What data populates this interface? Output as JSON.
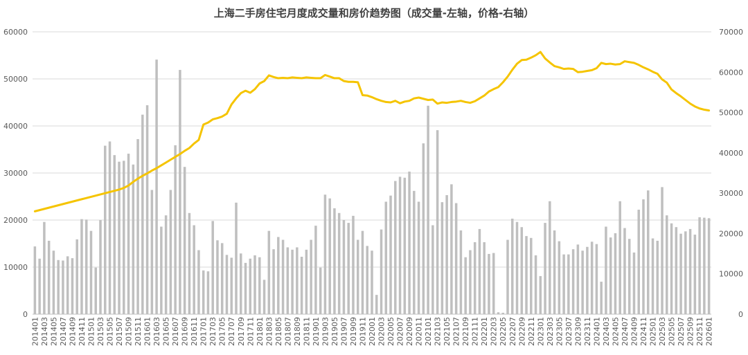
{
  "chart_data": {
    "type": "bar",
    "title": "上海二手房住宅月度成交量和房价趋势图（成交量-左轴，价格-右轴）",
    "left_axis": {
      "min": 0,
      "max": 60000,
      "ticks": [
        "0",
        "10000",
        "20000",
        "30000",
        "40000",
        "50000",
        "60000"
      ]
    },
    "right_axis": {
      "min": 0,
      "max": 70000,
      "ticks": [
        "0",
        "10000",
        "20000",
        "30000",
        "40000",
        "50000",
        "60000",
        "70000"
      ]
    },
    "grid": true,
    "colors": {
      "bar": "#bfbfbf",
      "line": "#f5c400",
      "grid": "#d9d9d9",
      "text": "#595959",
      "title": "#404040"
    },
    "x_tick_labels": [
      "201401",
      "201403",
      "201405",
      "201407",
      "201409",
      "201411",
      "201501",
      "201503",
      "201505",
      "201507",
      "201509",
      "201511",
      "201601",
      "201603",
      "201605",
      "201607",
      "201609",
      "201611",
      "201701",
      "201703",
      "201705",
      "201707",
      "201709",
      "201711",
      "201801",
      "201803",
      "201805",
      "201807",
      "201809",
      "201811",
      "201901",
      "201903",
      "201905",
      "201907",
      "201909",
      "201911",
      "202001",
      "202003",
      "202005",
      "202007",
      "202009",
      "202011",
      "202101",
      "202103",
      "202105",
      "202107",
      "202109",
      "202111",
      "202201",
      "202203",
      "202205",
      "202207",
      "202209",
      "202211",
      "202301",
      "202303",
      "202305",
      "202307",
      "202309",
      "202311",
      "202401",
      "202403",
      "202405",
      "202407",
      "202409",
      "202411",
      "202501",
      "202503",
      "202505",
      "202507",
      "202509",
      "202511",
      "202601"
    ],
    "categories": [
      "201401",
      "201402",
      "201403",
      "201404",
      "201405",
      "201406",
      "201407",
      "201408",
      "201409",
      "201410",
      "201411",
      "201412",
      "201501",
      "201502",
      "201503",
      "201504",
      "201505",
      "201506",
      "201507",
      "201508",
      "201509",
      "201510",
      "201511",
      "201512",
      "201601",
      "201602",
      "201603",
      "201604",
      "201605",
      "201606",
      "201607",
      "201608",
      "201609",
      "201610",
      "201611",
      "201612",
      "201701",
      "201702",
      "201703",
      "201704",
      "201705",
      "201706",
      "201707",
      "201708",
      "201709",
      "201710",
      "201711",
      "201712",
      "201801",
      "201802",
      "201803",
      "201804",
      "201805",
      "201806",
      "201807",
      "201808",
      "201809",
      "201810",
      "201811",
      "201812",
      "201901",
      "201902",
      "201903",
      "201904",
      "201905",
      "201906",
      "201907",
      "201908",
      "201909",
      "201910",
      "201911",
      "201912",
      "202001",
      "202002",
      "202003",
      "202004",
      "202005",
      "202006",
      "202007",
      "202008",
      "202009",
      "202010",
      "202011",
      "202012",
      "202101",
      "202102",
      "202103",
      "202104",
      "202105",
      "202106",
      "202107",
      "202108",
      "202109",
      "202110",
      "202111",
      "202112",
      "202201",
      "202202",
      "202203",
      "202204",
      "202205",
      "202206",
      "202207",
      "202208",
      "202209",
      "202210",
      "202211",
      "202212",
      "202301",
      "202302",
      "202303",
      "202304",
      "202305",
      "202306",
      "202307",
      "202308",
      "202309",
      "202310",
      "202311",
      "202312",
      "202401",
      "202402",
      "202403",
      "202404",
      "202405",
      "202406",
      "202407",
      "202408",
      "202409",
      "202410",
      "202411",
      "202412",
      "202501",
      "202502",
      "202503",
      "202504",
      "202505",
      "202506",
      "202507",
      "202508",
      "202509",
      "202510",
      "202511",
      "202512",
      "202601"
    ],
    "volume": [
      14400,
      11800,
      19600,
      15600,
      13500,
      11500,
      11400,
      12300,
      11900,
      15900,
      20200,
      20100,
      17700,
      9900,
      20000,
      35800,
      36700,
      33800,
      32400,
      32600,
      34100,
      31800,
      37200,
      42400,
      44400,
      26400,
      54100,
      18600,
      21000,
      26400,
      35900,
      51900,
      31300,
      21500,
      18900,
      13600,
      9300,
      9100,
      19800,
      15700,
      15100,
      12600,
      12000,
      23700,
      12900,
      10900,
      11800,
      12500,
      12100,
      7300,
      17700,
      13800,
      16400,
      15800,
      14200,
      13700,
      14200,
      12200,
      13700,
      15800,
      18800,
      9900,
      25400,
      24600,
      22500,
      21500,
      20000,
      19400,
      20900,
      15800,
      17700,
      14500,
      13500,
      4100,
      18000,
      23900,
      25200,
      28300,
      29200,
      29000,
      30300,
      26200,
      23900,
      36300,
      44300,
      18900,
      39100,
      23800,
      25300,
      27600,
      23600,
      17800,
      12100,
      13600,
      15300,
      18100,
      15300,
      12800,
      13000,
      400,
      300,
      15800,
      20300,
      19600,
      18500,
      16600,
      16200,
      12500,
      8100,
      19400,
      24000,
      17800,
      15500,
      12700,
      12700,
      13800,
      14800,
      13500,
      14300,
      15400,
      14900,
      6900,
      18600,
      16300,
      17200,
      24000,
      18300,
      16000,
      13100,
      22200,
      24400,
      26300,
      16100,
      15600,
      27000,
      21000,
      19300,
      18500,
      17100,
      17600,
      18100,
      16900,
      20600,
      20500,
      20400
    ],
    "price": [
      25500,
      25800,
      26100,
      26400,
      26700,
      27000,
      27300,
      27600,
      27900,
      28200,
      28500,
      28800,
      29100,
      29400,
      29700,
      30000,
      30300,
      30600,
      30900,
      31300,
      31900,
      32800,
      33600,
      34300,
      34900,
      35600,
      36200,
      36900,
      37600,
      38300,
      39000,
      39700,
      40500,
      41200,
      42300,
      43200,
      47000,
      47500,
      48300,
      48600,
      49000,
      49700,
      52000,
      53500,
      54800,
      55400,
      54900,
      55800,
      57200,
      57800,
      59200,
      58800,
      58500,
      58600,
      58500,
      58700,
      58600,
      58500,
      58700,
      58600,
      58500,
      58500,
      59300,
      58900,
      58500,
      58500,
      57800,
      57600,
      57600,
      57500,
      54300,
      54200,
      53800,
      53300,
      52900,
      52600,
      52500,
      52900,
      52300,
      52700,
      52900,
      53500,
      53700,
      53400,
      53100,
      53200,
      52200,
      52500,
      52400,
      52600,
      52700,
      52900,
      52600,
      52400,
      52800,
      53500,
      54200,
      55200,
      55800,
      56300,
      57500,
      58900,
      60600,
      62100,
      63000,
      63100,
      63600,
      64200,
      65000,
      63400,
      62400,
      61500,
      61200,
      60800,
      60900,
      60800,
      60000,
      60100,
      60300,
      60500,
      61000,
      62300,
      62000,
      62100,
      61900,
      62000,
      62700,
      62500,
      62300,
      61800,
      61200,
      60700,
      60100,
      59600,
      58200,
      57400,
      55700,
      54800,
      54000,
      53100,
      52200,
      51500,
      51000,
      50700,
      50500
    ],
    "series": []
  }
}
